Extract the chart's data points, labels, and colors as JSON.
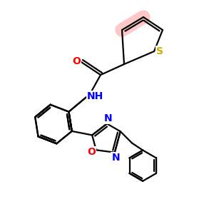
{
  "bg_color": "#ffffff",
  "atom_colors": {
    "O": "#ff0000",
    "N": "#0000ff",
    "S": "#ccaa00",
    "C": "#000000"
  },
  "highlight_color": "#ff9999",
  "line_color": "#000000",
  "line_width": 1.6,
  "figsize": [
    3.0,
    3.0
  ],
  "dpi": 100
}
